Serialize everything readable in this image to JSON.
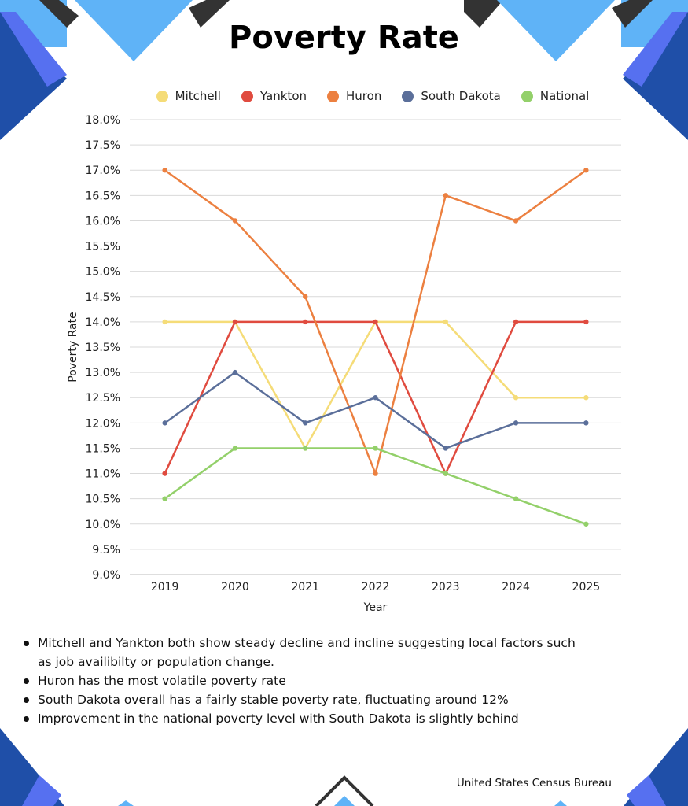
{
  "title": "Poverty Rate",
  "source": "United States Census Bureau",
  "bullets": [
    "Mitchell and Yankton both show steady decline and incline suggesting local factors such as job availibilty or population change.",
    "Huron has the most volatile poverty rate",
    "South Dakota overall has a fairly stable poverty rate, fluctuating around 12%",
    "Improvement in the national poverty level with South Dakota is slightly behind"
  ],
  "chart_data": {
    "type": "line",
    "title": "Poverty Rate",
    "xlabel": "Year",
    "ylabel": "Poverty Rate",
    "x": [
      "2019",
      "2020",
      "2021",
      "2022",
      "2023",
      "2024",
      "2025"
    ],
    "ylim": [
      9.0,
      18.0
    ],
    "ytick_step": 0.5,
    "y_tick_format": "percent_1dp",
    "grid": true,
    "legend_position": "top",
    "series": [
      {
        "name": "Mitchell",
        "color": "#f5dc78",
        "values": [
          14.0,
          14.0,
          11.5,
          14.0,
          14.0,
          12.5,
          12.5
        ]
      },
      {
        "name": "Yankton",
        "color": "#e04b3f",
        "values": [
          11.0,
          14.0,
          14.0,
          14.0,
          11.0,
          14.0,
          14.0
        ]
      },
      {
        "name": "Huron",
        "color": "#ec8040",
        "values": [
          17.0,
          16.0,
          14.5,
          11.0,
          16.5,
          16.0,
          17.0
        ]
      },
      {
        "name": "South Dakota",
        "color": "#5b6f9a",
        "values": [
          12.0,
          13.0,
          12.0,
          12.5,
          11.5,
          12.0,
          12.0
        ]
      },
      {
        "name": "National",
        "color": "#93d06a",
        "values": [
          10.5,
          11.5,
          11.5,
          11.5,
          11.0,
          10.5,
          10.0
        ]
      }
    ]
  }
}
